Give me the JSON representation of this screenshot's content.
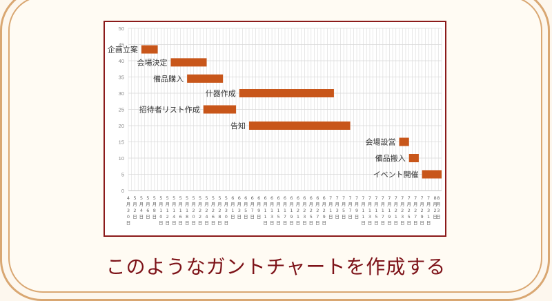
{
  "caption": "このようなガントチャートを作成する",
  "colors": {
    "bar": "#c8561a",
    "frame": "#d9a772",
    "chart_border": "#8b1a1a",
    "caption": "#7d1218",
    "grid": "#d9d9d9"
  },
  "chart_data": {
    "type": "bar",
    "orientation": "horizontal-gantt",
    "title": "",
    "xlabel": "",
    "ylabel": "",
    "ylim": [
      0,
      50
    ],
    "y_ticks": [
      "0",
      "5",
      "10",
      "15",
      "20",
      "25",
      "30",
      "35",
      "40",
      "45",
      "50"
    ],
    "grid": true,
    "x_dates": [
      [
        "4",
        "月",
        "3",
        "0",
        "日"
      ],
      [
        "5",
        "月",
        "2",
        "日"
      ],
      [
        "5",
        "月",
        "4",
        "日"
      ],
      [
        "5",
        "月",
        "6",
        "日"
      ],
      [
        "5",
        "月",
        "8",
        "日"
      ],
      [
        "5",
        "月",
        "1",
        "0",
        "日"
      ],
      [
        "5",
        "月",
        "1",
        "2",
        "日"
      ],
      [
        "5",
        "月",
        "1",
        "4",
        "日"
      ],
      [
        "5",
        "月",
        "1",
        "6",
        "日"
      ],
      [
        "5",
        "月",
        "1",
        "8",
        "日"
      ],
      [
        "5",
        "月",
        "2",
        "0",
        "日"
      ],
      [
        "5",
        "月",
        "2",
        "2",
        "日"
      ],
      [
        "5",
        "月",
        "2",
        "4",
        "日"
      ],
      [
        "5",
        "月",
        "2",
        "6",
        "日"
      ],
      [
        "5",
        "月",
        "2",
        "8",
        "日"
      ],
      [
        "5",
        "月",
        "3",
        "0",
        "日"
      ],
      [
        "6",
        "月",
        "1",
        "日"
      ],
      [
        "6",
        "月",
        "3",
        "日"
      ],
      [
        "6",
        "月",
        "5",
        "日"
      ],
      [
        "6",
        "月",
        "7",
        "日"
      ],
      [
        "6",
        "月",
        "9",
        "日"
      ],
      [
        "6",
        "月",
        "1",
        "1",
        "日"
      ],
      [
        "6",
        "月",
        "1",
        "3",
        "日"
      ],
      [
        "6",
        "月",
        "1",
        "5",
        "日"
      ],
      [
        "6",
        "月",
        "1",
        "7",
        "日"
      ],
      [
        "6",
        "月",
        "1",
        "9",
        "日"
      ],
      [
        "6",
        "月",
        "2",
        "1",
        "日"
      ],
      [
        "6",
        "月",
        "2",
        "3",
        "日"
      ],
      [
        "6",
        "月",
        "2",
        "5",
        "日"
      ],
      [
        "6",
        "月",
        "2",
        "7",
        "日"
      ],
      [
        "6",
        "月",
        "2",
        "9",
        "日"
      ],
      [
        "7",
        "月",
        "1",
        "日"
      ],
      [
        "7",
        "月",
        "3",
        "日"
      ],
      [
        "7",
        "月",
        "5",
        "日"
      ],
      [
        "7",
        "月",
        "7",
        "日"
      ],
      [
        "7",
        "月",
        "9",
        "日"
      ],
      [
        "7",
        "月",
        "1",
        "1",
        "日"
      ],
      [
        "7",
        "月",
        "1",
        "3",
        "日"
      ],
      [
        "7",
        "月",
        "1",
        "5",
        "日"
      ],
      [
        "7",
        "月",
        "1",
        "7",
        "日"
      ],
      [
        "7",
        "月",
        "1",
        "9",
        "日"
      ],
      [
        "7",
        "月",
        "2",
        "1",
        "日"
      ],
      [
        "7",
        "月",
        "2",
        "3",
        "日"
      ],
      [
        "7",
        "月",
        "2",
        "5",
        "日"
      ],
      [
        "7",
        "月",
        "2",
        "7",
        "日"
      ],
      [
        "7",
        "月",
        "2",
        "9",
        "日"
      ],
      [
        "7",
        "月",
        "3",
        "1",
        "日"
      ],
      [
        "8",
        "月",
        "2",
        "日"
      ],
      [
        "8",
        "月",
        "3",
        "日"
      ]
    ],
    "tasks": [
      {
        "label": "企画立案",
        "start": "5月4日",
        "end": "5月9日",
        "y": 43.5
      },
      {
        "label": "会場決定",
        "start": "5月13日",
        "end": "5月24日",
        "y": 39.5
      },
      {
        "label": "備品購入",
        "start": "5月18日",
        "end": "5月29日",
        "y": 34.5
      },
      {
        "label": "什器作成",
        "start": "6月3日",
        "end": "7月2日",
        "y": 30
      },
      {
        "label": "招待者リスト作成",
        "start": "5月23日",
        "end": "6月2日",
        "y": 25
      },
      {
        "label": "告知",
        "start": "6月6日",
        "end": "7月7日",
        "y": 20
      },
      {
        "label": "会場設営",
        "start": "7月22日",
        "end": "7月25日",
        "y": 15
      },
      {
        "label": "備品搬入",
        "start": "7月25日",
        "end": "7月28日",
        "y": 10
      },
      {
        "label": "イベント開催",
        "start": "7月29日",
        "end": "8月4日",
        "y": 5
      }
    ]
  }
}
